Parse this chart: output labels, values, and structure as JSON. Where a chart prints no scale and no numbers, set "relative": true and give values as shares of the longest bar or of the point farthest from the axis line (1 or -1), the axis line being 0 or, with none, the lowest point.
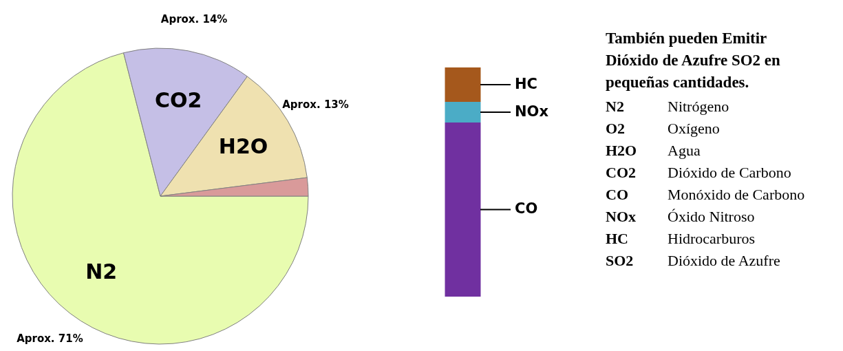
{
  "chart_data": [
    {
      "type": "pie",
      "categories": [
        "N2",
        "CO2",
        "H2O",
        null
      ],
      "values": [
        71,
        14,
        13,
        2
      ],
      "colors": [
        "#e8fcb0",
        "#c5bfe6",
        "#efe1b0",
        "#d99a9a"
      ],
      "value_labels": [
        "Aprox. 71%",
        "Aprox. 14%",
        "Aprox. 13%",
        null
      ]
    },
    {
      "type": "bar",
      "stacked": true,
      "relative": true,
      "categories": [
        null
      ],
      "series": [
        {
          "name": "CO",
          "color": "#7030a0",
          "values": [
            0.76
          ]
        },
        {
          "name": "NOx",
          "color": "#4bacc6",
          "values": [
            0.09
          ]
        },
        {
          "name": "HC",
          "color": "#a5581c",
          "values": [
            0.15
          ]
        }
      ]
    },
    {
      "type": "other",
      "title": "También pueden Emitir Dióxido de Azufre SO2 en pequeñas cantidades.",
      "categories": [
        "N2",
        "O2",
        "H2O",
        "CO2",
        "CO",
        "NOx",
        "HC",
        "SO2"
      ],
      "annotations": [
        "Nitrógeno",
        "Oxígeno",
        "Agua",
        "Dióxido de Carbono",
        "Monóxido de Carbono",
        "Óxido Nitroso",
        "Hidrocarburos",
        "Dióxido de Azufre"
      ]
    }
  ]
}
